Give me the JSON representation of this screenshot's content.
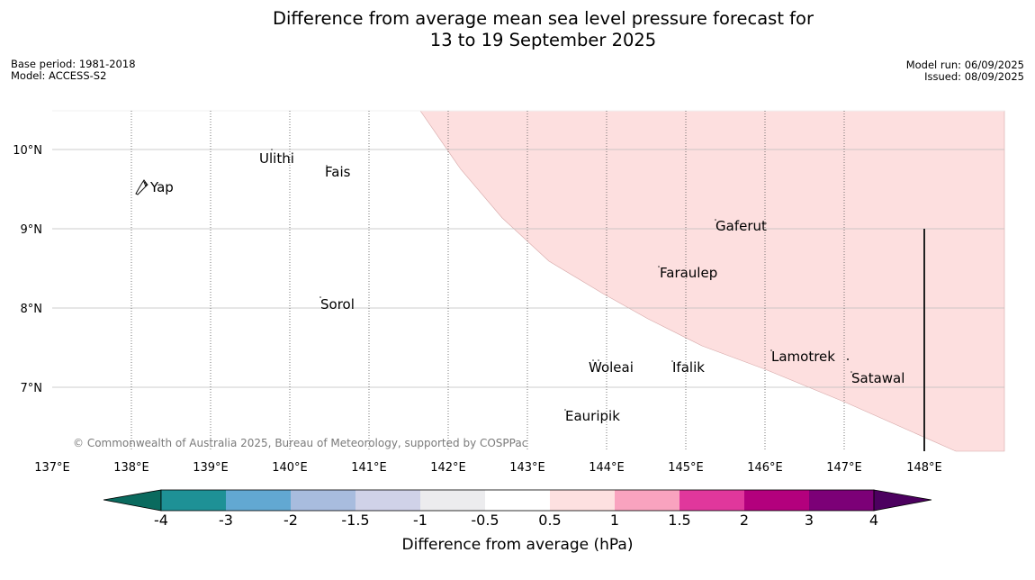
{
  "title_line1": "Difference from average mean sea level pressure forecast for",
  "title_line2": "13 to 19 September 2025",
  "base_period": "Base period: 1981-2018",
  "model": "Model: ACCESS-S2",
  "model_run": "Model run: 06/09/2025",
  "issued": "Issued: 08/09/2025",
  "copyright": "© Commonwealth of Australia 2025, Bureau of Meteorology, supported by COSPPac",
  "map": {
    "lon_labels": [
      "137°E",
      "138°E",
      "139°E",
      "140°E",
      "141°E",
      "142°E",
      "143°E",
      "144°E",
      "145°E",
      "146°E",
      "147°E",
      "148°E"
    ],
    "lat_labels": [
      "10°N",
      "9°N",
      "8°N",
      "7°N"
    ],
    "places": [
      {
        "name": "Yap",
        "lon": 138.15,
        "lat": 9.52
      },
      {
        "name": "Ulithi",
        "lon": 139.72,
        "lat": 9.92
      },
      {
        "name": "Fais",
        "lon": 140.52,
        "lat": 9.77
      },
      {
        "name": "Gaferut",
        "lon": 145.38,
        "lat": 9.23
      },
      {
        "name": "Faraulep",
        "lon": 144.6,
        "lat": 8.6
      },
      {
        "name": "Sorol",
        "lon": 140.38,
        "lat": 8.13
      },
      {
        "name": "Lamotrek",
        "lon": 146.03,
        "lat": 7.47
      },
      {
        "name": "Woleai",
        "lon": 143.88,
        "lat": 7.37
      },
      {
        "name": "Ifalik",
        "lon": 144.45,
        "lat": 7.25
      },
      {
        "name": "Satawal",
        "lon": 147.03,
        "lat": 7.35
      },
      {
        "name": "Eauripik",
        "lon": 143.05,
        "lat": 6.68
      }
    ],
    "anomaly_region": {
      "range_hpa": "0.5 to 1",
      "fill": "#fddfdf"
    }
  },
  "colorbar": {
    "title": "Difference from average (hPa)",
    "ticks": [
      "-4",
      "-3",
      "-2",
      "-1.5",
      "-1",
      "-0.5",
      "0.5",
      "1",
      "1.5",
      "2",
      "3",
      "4"
    ],
    "colors": [
      "#0a6a5e",
      "#1e9196",
      "#62a8d2",
      "#a8bcde",
      "#d0d2e8",
      "#ececee",
      "#ffffff",
      "#fde0e0",
      "#f9a3bf",
      "#e0379c",
      "#b3007d",
      "#7c0077",
      "#4c005f"
    ]
  }
}
